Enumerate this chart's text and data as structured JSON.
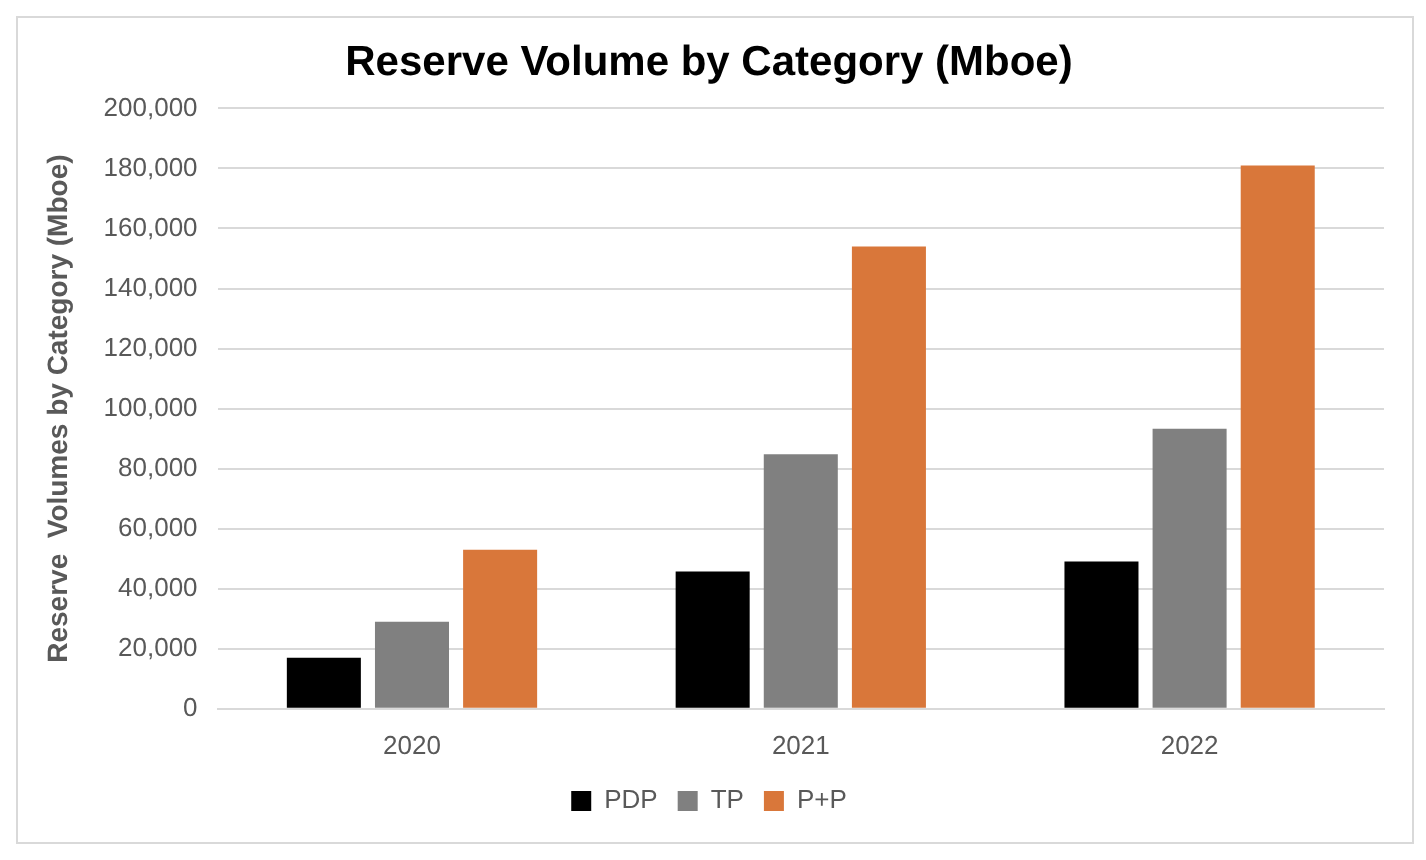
{
  "chart_data": {
    "type": "bar",
    "title": "Reserve Volume by Category (Mboe)",
    "ylabel": "Reserve  Volumes by Category (Mboe)",
    "categories": [
      "2020",
      "2021",
      "2022"
    ],
    "series": [
      {
        "name": "PDP",
        "color": "#000000",
        "values": [
          17000,
          45700,
          49100
        ]
      },
      {
        "name": "TP",
        "color": "#808080",
        "values": [
          29000,
          84800,
          93300
        ]
      },
      {
        "name": "P+P",
        "color": "#d9773a",
        "values": [
          53000,
          154000,
          181000
        ]
      }
    ],
    "ylim": [
      0,
      200000
    ],
    "yticks": [
      {
        "value": 0,
        "label": "0"
      },
      {
        "value": 20000,
        "label": "20,000"
      },
      {
        "value": 40000,
        "label": "40,000"
      },
      {
        "value": 60000,
        "label": "60,000"
      },
      {
        "value": 80000,
        "label": "80,000"
      },
      {
        "value": 100000,
        "label": "100,000"
      },
      {
        "value": 120000,
        "label": "120,000"
      },
      {
        "value": 140000,
        "label": "140,000"
      },
      {
        "value": 160000,
        "label": "160,000"
      },
      {
        "value": 180000,
        "label": "180,000"
      },
      {
        "value": 200000,
        "label": "200,000"
      }
    ],
    "grid": "y",
    "legend": "bottom"
  }
}
